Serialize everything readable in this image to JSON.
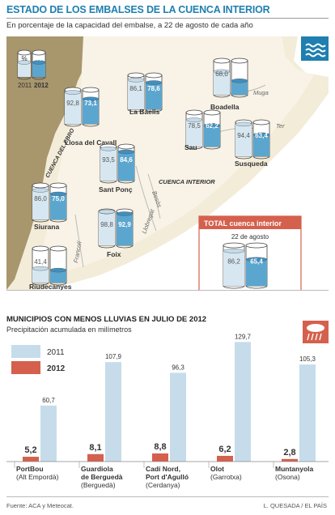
{
  "title": "ESTADO DE LOS EMBALSES DE LA CUENCA INTERIOR",
  "subtitle": "En porcentaje de la capacidad del embalse, a 22 de agosto de cada año",
  "colors": {
    "accent": "#1f7fb0",
    "map_land": "#f3ecd9",
    "map_ebro": "#a8966d",
    "water": "#5ba6cf",
    "cyl_light": "#d7e7f1",
    "bar2011": "#c6dcea",
    "bar2012": "#d5604d"
  },
  "legend_cylinder": {
    "pct_symbol": "%",
    "y2011": "2011",
    "y2012": "2012"
  },
  "map_labels": {
    "ebro": "CUENCA DEL EBRO",
    "interior": "CUENCA INTERIOR",
    "rivers": [
      "Muga",
      "Ter",
      "Besòs",
      "Llobregat",
      "Francolí"
    ]
  },
  "reservoirs": [
    {
      "name": "Llosa del Cavall",
      "v2011": "92,8",
      "v2012": "73,1"
    },
    {
      "name": "La Baells",
      "v2011": "86,1",
      "v2012": "78,6"
    },
    {
      "name": "Boadella",
      "v2011": "68,0",
      "v2012": "41,0"
    },
    {
      "name": "Sau",
      "v2011": "78,5",
      "v2012": "62,2"
    },
    {
      "name": "Susqueda",
      "v2011": "94,4",
      "v2012": "63,4"
    },
    {
      "name": "Sant Ponç",
      "v2011": "93,5",
      "v2012": "84,6"
    },
    {
      "name": "Siurana",
      "v2011": "86,0",
      "v2012": "75,0"
    },
    {
      "name": "Foix",
      "v2011": "98,8",
      "v2012": "92,9"
    },
    {
      "name": "Riudecanyes",
      "v2011": "41,4",
      "v2012": "36,6"
    }
  ],
  "total": {
    "label": "TOTAL cuenca interior",
    "date": "22 de agosto",
    "v2011": "86,2",
    "v2012": "65,4",
    "y2011": "2011",
    "y2012": "2012"
  },
  "section2_title": "MUNICIPIOS CON MENOS LLUVIAS EN JULIO DE 2012",
  "section2_subtitle": "Precipitación acumulada en milímetros",
  "chart_data": {
    "type": "bar",
    "categories": [
      [
        "PortBou",
        "(Alt Empordà)"
      ],
      [
        "Guardiola",
        "de Berguedà",
        "(Berguedà)"
      ],
      [
        "Cadí Nord,",
        "Port d'Agulló",
        "(Cerdanya)"
      ],
      [
        "Olot",
        "(Garrotxa)"
      ],
      [
        "Muntanyola",
        "(Osona)"
      ]
    ],
    "series": [
      {
        "name": "2011",
        "values": [
          60.7,
          107.9,
          96.3,
          129.7,
          105.3
        ],
        "labels": [
          "60,7",
          "107,9",
          "96,3",
          "129,7",
          "105,3"
        ]
      },
      {
        "name": "2012",
        "values": [
          5.2,
          8.1,
          8.8,
          6.2,
          2.8
        ],
        "labels": [
          "5,2",
          "8,1",
          "8,8",
          "6,2",
          "2,8"
        ]
      }
    ],
    "ylim": [
      0,
      130
    ],
    "legend": "top-left"
  },
  "footer_source": "Fuente: ACA y Meteocat.",
  "footer_credit": "L. QUESADA / EL PAÍS"
}
